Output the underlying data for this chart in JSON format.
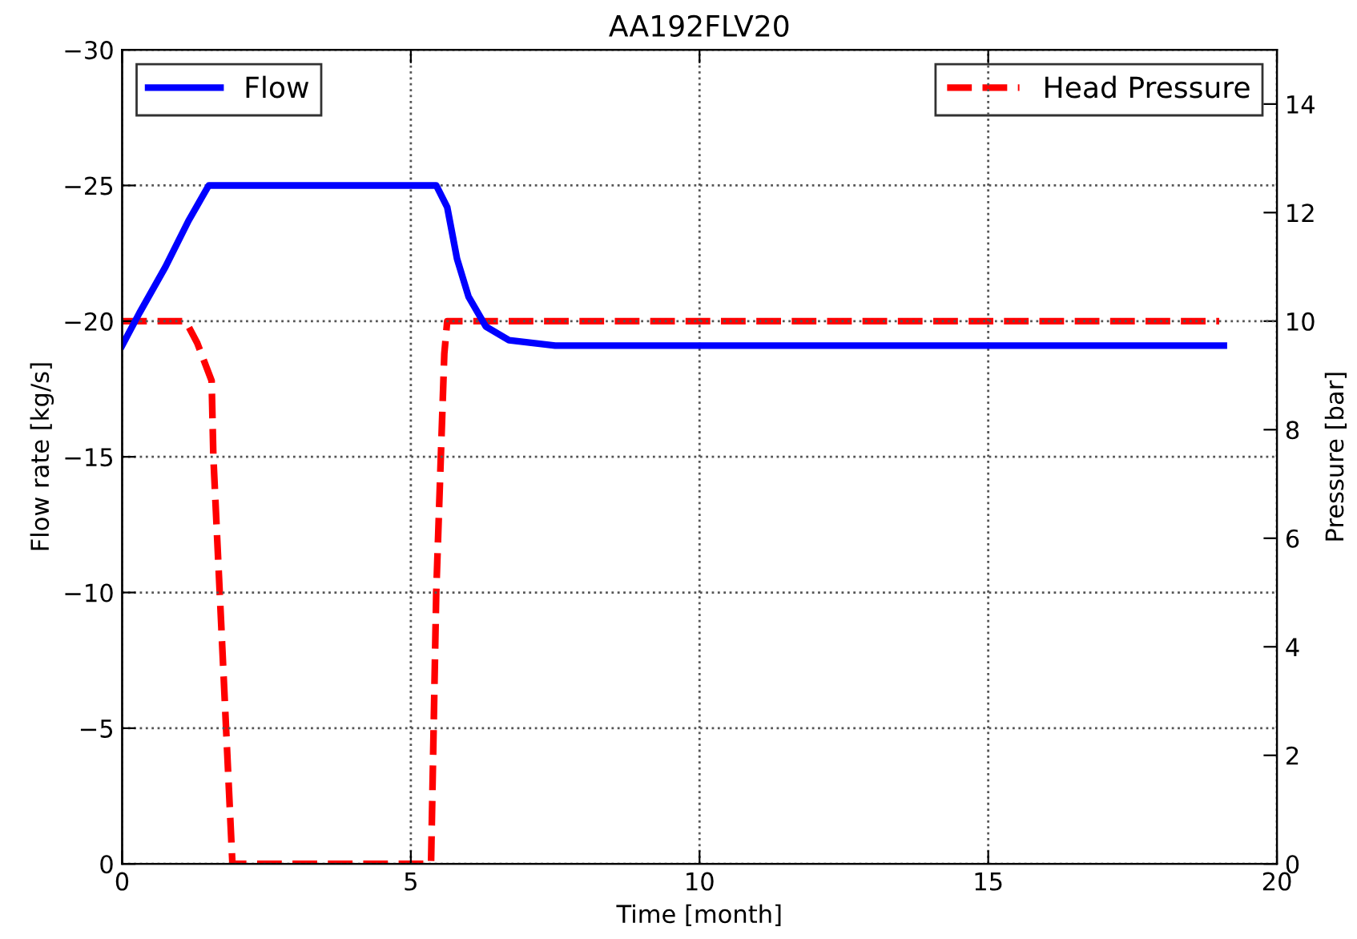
{
  "chart_data": {
    "type": "line",
    "title": "AA192FLV20",
    "xlabel": "Time [month]",
    "ylabel": "Flow rate [kg/s]",
    "y2label": "Pressure [bar]",
    "series": [
      {
        "name": "Flow",
        "color": "#0000ff",
        "line_style": "solid",
        "x": [
          0,
          0.3,
          0.75,
          1.15,
          1.5,
          5.44,
          5.63,
          5.8,
          6.0,
          6.3,
          6.7,
          7.5,
          8,
          19.08
        ],
        "values": [
          -19.1,
          -20.3,
          -22,
          -23.7,
          -25,
          -25,
          -24.2,
          -22.3,
          -20.9,
          -19.8,
          -19.3,
          -19.1,
          -19.1,
          -19.1
        ]
      },
      {
        "name": "Head Pressure",
        "color": "#ff0000",
        "line_style": "dashed",
        "axis": "y2",
        "x": [
          0,
          1.1,
          1.3,
          1.55,
          1.58,
          1.69,
          1.91,
          5.35,
          5.44,
          5.58,
          5.63,
          19.0
        ],
        "values": [
          10,
          10,
          9.6,
          8.9,
          7.5,
          5.0,
          0,
          0,
          5.0,
          9.4,
          10,
          10
        ]
      }
    ],
    "xlim": [
      0,
      20
    ],
    "xticks": [
      0,
      5,
      10,
      15,
      20
    ],
    "ylim": [
      0,
      -30
    ],
    "yticks": [
      {
        "value": 0,
        "label": "0"
      },
      {
        "value": -5,
        "label": "−5"
      },
      {
        "value": -10,
        "label": "−10"
      },
      {
        "value": -15,
        "label": "−15"
      },
      {
        "value": -20,
        "label": "−20"
      },
      {
        "value": -25,
        "label": "−25"
      },
      {
        "value": -30,
        "label": "−30"
      }
    ],
    "y2lim": [
      0,
      15
    ],
    "y2ticks": [
      0,
      2,
      4,
      6,
      8,
      10,
      12,
      14
    ],
    "grid": true,
    "legend": "top",
    "marker": "none"
  }
}
